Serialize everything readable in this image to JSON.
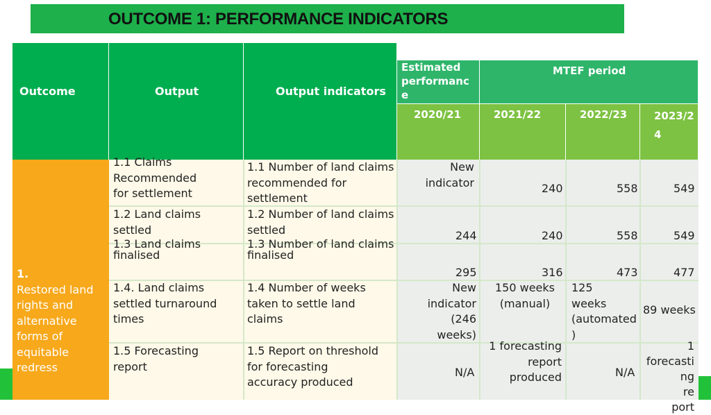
{
  "title": "OUTCOME 1: PERFORMANCE INDICATORS",
  "colors": {
    "title_bg": "#1db04b",
    "header_green": "#00ad4f",
    "mtef_green": "#2eb56a",
    "year_green": "#7dc242",
    "outcome_orange": "#f7a81b"
  },
  "header": {
    "outcome": "Outcome",
    "output": "Output",
    "indicators": "Output indicators",
    "estimated": "Estimated\nperformanc\ne",
    "mtef": "MTEF period",
    "years": [
      "2020/21",
      "2021/22",
      "2022/23",
      "2023/2\n4"
    ]
  },
  "outcome_text": {
    "number": "1.",
    "label": "Restored land\nrights and\nalternative\nforms of\nequitable\nredress"
  },
  "rows": [
    {
      "output": "1.1  Claims\n      Recommended\n      for settlement",
      "indicator": "1.1  Number of land claims\n      recommended for\n      settlement",
      "est": "New\nindicator",
      "y1": "240",
      "y2": "558",
      "y3": "549"
    },
    {
      "output": "1.2  Land claims\n      settled",
      "indicator": "1.2  Number of land claims\n      settled",
      "est": "244",
      "y1": "240",
      "y2": "558",
      "y3": "549"
    },
    {
      "output": "   1.3 Land claims\n         finalised",
      "indicator": "1.3  Number of land claims\n      finalised",
      "est": "295",
      "y1": "316",
      "y2": "473",
      "y3": "477"
    },
    {
      "output": "1.4. Land claims\n      settled turnaround\n      times",
      "indicator": "1.4  Number of weeks\n      taken to settle land\n      claims",
      "est": "New\nindicator\n(246\nweeks)",
      "y1": "150 weeks\n(manual)",
      "y2": "    125\nweeks\n(automated\n)",
      "y3": "89 weeks"
    },
    {
      "output": "1.5  Forecasting\n      report",
      "indicator": "1.5  Report on threshold\n      for forecasting\n      accuracy produced",
      "est": "N/A",
      "y1": "1 forecasting\nreport\nproduced",
      "y2": "N/A",
      "y3": "1\nforecasti\nng\nre\nport"
    }
  ]
}
